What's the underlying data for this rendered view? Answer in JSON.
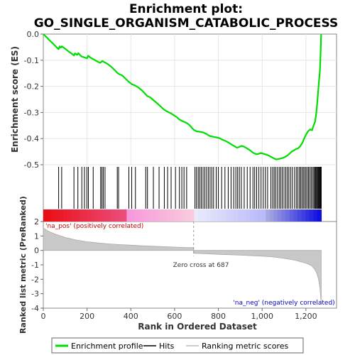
{
  "chart_data": {
    "type": "line",
    "title_line1": "Enrichment plot:",
    "title_line2": "GO_SINGLE_ORGANISM_CATABOLIC_PROCESS",
    "xlabel": "Rank in Ordered Dataset",
    "ylabel_es": "Enrichment score (ES)",
    "ylabel_metric": "Ranked list metric (PreRanked)",
    "xlim": [
      0,
      1340
    ],
    "es_ylim": [
      -0.5,
      0.0
    ],
    "metric_ylim": [
      -4,
      2
    ],
    "x_ticks": [
      {
        "v": 0,
        "label": "0"
      },
      {
        "v": 200,
        "label": "200"
      },
      {
        "v": 400,
        "label": "400"
      },
      {
        "v": 600,
        "label": "600"
      },
      {
        "v": 800,
        "label": "800"
      },
      {
        "v": 1000,
        "label": "1,000"
      },
      {
        "v": 1200,
        "label": "1,200"
      }
    ],
    "es_ticks": [
      {
        "v": 0.0,
        "label": "0.0"
      },
      {
        "v": -0.1,
        "label": "-0.1"
      },
      {
        "v": -0.2,
        "label": "-0.2"
      },
      {
        "v": -0.3,
        "label": "-0.3"
      },
      {
        "v": -0.4,
        "label": "-0.4"
      },
      {
        "v": -0.5,
        "label": "-0.5"
      }
    ],
    "metric_ticks": [
      {
        "v": 2,
        "label": "2"
      },
      {
        "v": 1,
        "label": "1"
      },
      {
        "v": 0,
        "label": "0"
      },
      {
        "v": -1,
        "label": "-1"
      },
      {
        "v": -2,
        "label": "-2"
      },
      {
        "v": -3,
        "label": "-3"
      },
      {
        "v": -4,
        "label": "-4"
      }
    ],
    "enrichment_profile": [
      [
        0,
        0.0
      ],
      [
        15,
        -0.012
      ],
      [
        30,
        -0.025
      ],
      [
        45,
        -0.037
      ],
      [
        60,
        -0.05
      ],
      [
        70,
        -0.058
      ],
      [
        75,
        -0.047
      ],
      [
        80,
        -0.052
      ],
      [
        85,
        -0.047
      ],
      [
        100,
        -0.056
      ],
      [
        115,
        -0.066
      ],
      [
        130,
        -0.075
      ],
      [
        140,
        -0.082
      ],
      [
        145,
        -0.074
      ],
      [
        155,
        -0.08
      ],
      [
        160,
        -0.073
      ],
      [
        175,
        -0.086
      ],
      [
        190,
        -0.09
      ],
      [
        200,
        -0.093
      ],
      [
        205,
        -0.083
      ],
      [
        215,
        -0.09
      ],
      [
        230,
        -0.097
      ],
      [
        245,
        -0.104
      ],
      [
        260,
        -0.11
      ],
      [
        270,
        -0.103
      ],
      [
        280,
        -0.108
      ],
      [
        295,
        -0.115
      ],
      [
        310,
        -0.125
      ],
      [
        325,
        -0.137
      ],
      [
        340,
        -0.15
      ],
      [
        350,
        -0.155
      ],
      [
        360,
        -0.158
      ],
      [
        375,
        -0.17
      ],
      [
        390,
        -0.182
      ],
      [
        405,
        -0.192
      ],
      [
        420,
        -0.197
      ],
      [
        435,
        -0.205
      ],
      [
        450,
        -0.215
      ],
      [
        465,
        -0.228
      ],
      [
        475,
        -0.237
      ],
      [
        490,
        -0.243
      ],
      [
        505,
        -0.254
      ],
      [
        520,
        -0.265
      ],
      [
        535,
        -0.276
      ],
      [
        550,
        -0.288
      ],
      [
        565,
        -0.296
      ],
      [
        580,
        -0.302
      ],
      [
        595,
        -0.31
      ],
      [
        610,
        -0.318
      ],
      [
        620,
        -0.326
      ],
      [
        635,
        -0.333
      ],
      [
        650,
        -0.338
      ],
      [
        660,
        -0.343
      ],
      [
        670,
        -0.35
      ],
      [
        680,
        -0.36
      ],
      [
        690,
        -0.368
      ],
      [
        700,
        -0.372
      ],
      [
        715,
        -0.374
      ],
      [
        730,
        -0.376
      ],
      [
        745,
        -0.382
      ],
      [
        760,
        -0.39
      ],
      [
        775,
        -0.393
      ],
      [
        790,
        -0.395
      ],
      [
        805,
        -0.398
      ],
      [
        820,
        -0.405
      ],
      [
        835,
        -0.41
      ],
      [
        850,
        -0.417
      ],
      [
        865,
        -0.425
      ],
      [
        875,
        -0.43
      ],
      [
        885,
        -0.435
      ],
      [
        895,
        -0.432
      ],
      [
        905,
        -0.428
      ],
      [
        915,
        -0.43
      ],
      [
        930,
        -0.437
      ],
      [
        945,
        -0.445
      ],
      [
        955,
        -0.452
      ],
      [
        965,
        -0.457
      ],
      [
        975,
        -0.46
      ],
      [
        985,
        -0.458
      ],
      [
        995,
        -0.455
      ],
      [
        1005,
        -0.458
      ],
      [
        1015,
        -0.46
      ],
      [
        1025,
        -0.463
      ],
      [
        1035,
        -0.467
      ],
      [
        1045,
        -0.472
      ],
      [
        1055,
        -0.476
      ],
      [
        1065,
        -0.48
      ],
      [
        1075,
        -0.478
      ],
      [
        1085,
        -0.476
      ],
      [
        1095,
        -0.474
      ],
      [
        1105,
        -0.47
      ],
      [
        1115,
        -0.465
      ],
      [
        1125,
        -0.458
      ],
      [
        1135,
        -0.45
      ],
      [
        1145,
        -0.445
      ],
      [
        1155,
        -0.44
      ],
      [
        1165,
        -0.437
      ],
      [
        1175,
        -0.428
      ],
      [
        1185,
        -0.415
      ],
      [
        1192,
        -0.4
      ],
      [
        1200,
        -0.385
      ],
      [
        1210,
        -0.372
      ],
      [
        1220,
        -0.365
      ],
      [
        1228,
        -0.368
      ],
      [
        1235,
        -0.35
      ],
      [
        1242,
        -0.335
      ],
      [
        1248,
        -0.3
      ],
      [
        1252,
        -0.26
      ],
      [
        1256,
        -0.22
      ],
      [
        1260,
        -0.18
      ],
      [
        1264,
        -0.14
      ],
      [
        1266,
        -0.1
      ],
      [
        1268,
        -0.05
      ],
      [
        1270,
        0.0
      ]
    ],
    "hit_ranks": [
      70,
      84,
      140,
      158,
      176,
      188,
      199,
      206,
      228,
      262,
      268,
      274,
      282,
      338,
      344,
      391,
      404,
      421,
      468,
      476,
      503,
      529,
      553,
      568,
      584,
      604,
      622,
      633,
      643,
      655,
      693,
      700,
      708,
      715,
      722,
      730,
      738,
      746,
      754,
      762,
      770,
      778,
      790,
      800,
      815,
      830,
      845,
      858,
      870,
      880,
      888,
      896,
      905,
      918,
      932,
      945,
      958,
      966,
      975,
      985,
      995,
      1005,
      1015,
      1025,
      1040,
      1048,
      1055,
      1062,
      1070,
      1078,
      1085,
      1092,
      1100,
      1108,
      1115,
      1122,
      1130,
      1138,
      1148,
      1156,
      1163,
      1170,
      1176,
      1182,
      1188,
      1194,
      1200,
      1206,
      1212,
      1218,
      1224,
      1230,
      1236,
      1240,
      1244,
      1248,
      1252,
      1255,
      1258,
      1261,
      1264,
      1267,
      1270
    ],
    "metric_profile": [
      [
        0,
        1.55
      ],
      [
        20,
        1.35
      ],
      [
        50,
        1.15
      ],
      [
        100,
        0.9
      ],
      [
        150,
        0.72
      ],
      [
        200,
        0.6
      ],
      [
        250,
        0.52
      ],
      [
        300,
        0.45
      ],
      [
        350,
        0.4
      ],
      [
        400,
        0.36
      ],
      [
        450,
        0.32
      ],
      [
        500,
        0.29
      ],
      [
        550,
        0.26
      ],
      [
        600,
        0.23
      ],
      [
        650,
        0.2
      ],
      [
        686,
        0.19
      ],
      [
        687,
        -0.2
      ],
      [
        720,
        -0.22
      ],
      [
        800,
        -0.27
      ],
      [
        900,
        -0.33
      ],
      [
        1000,
        -0.4
      ],
      [
        1050,
        -0.45
      ],
      [
        1100,
        -0.55
      ],
      [
        1150,
        -0.68
      ],
      [
        1200,
        -0.88
      ],
      [
        1225,
        -1.05
      ],
      [
        1240,
        -1.3
      ],
      [
        1250,
        -1.6
      ],
      [
        1258,
        -2.0
      ],
      [
        1264,
        -2.6
      ],
      [
        1268,
        -3.3
      ],
      [
        1270,
        -3.7
      ]
    ],
    "n_genes": 1270,
    "zero_cross": 687,
    "zero_cross_label": "Zero cross at 687",
    "pos_label": "'na_pos' (positively correlated)",
    "neg_label": "'na_neg' (negatively correlated)",
    "legend": {
      "entries": [
        "Enrichment profile",
        "Hits",
        "Ranking metric scores"
      ],
      "colors": [
        "#00dd00",
        "#000000",
        "#bbbbbb"
      ]
    },
    "colors": {
      "es_line": "#00dd00",
      "pos": "#dd0000",
      "neg": "#0000dd",
      "pos_text": "#cc0000",
      "neg_text": "#0000cc",
      "metric_fill": "#c8c8c8"
    }
  }
}
